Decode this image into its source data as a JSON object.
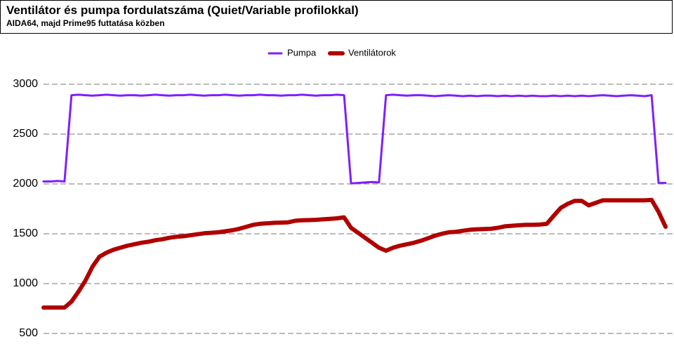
{
  "chart_data": {
    "type": "line",
    "title": "Ventilátor és pumpa fordulatszáma (Quiet/Variable profilokkal)",
    "subtitle": "AIDA64, majd Prime95 futtatása közben",
    "ylim": [
      500,
      3000
    ],
    "yticks": [
      500,
      1000,
      1500,
      2000,
      2500,
      3000
    ],
    "grid": true,
    "legend": "top",
    "series": [
      {
        "name": "Pumpa",
        "color": "#7f1fff",
        "values": [
          2025,
          2025,
          2030,
          2025,
          2890,
          2895,
          2890,
          2885,
          2890,
          2895,
          2890,
          2885,
          2890,
          2890,
          2885,
          2890,
          2895,
          2890,
          2885,
          2890,
          2890,
          2895,
          2890,
          2885,
          2890,
          2890,
          2895,
          2890,
          2885,
          2890,
          2890,
          2895,
          2890,
          2890,
          2885,
          2890,
          2890,
          2895,
          2890,
          2885,
          2890,
          2890,
          2895,
          2890,
          2005,
          2010,
          2015,
          2020,
          2015,
          2890,
          2895,
          2890,
          2885,
          2890,
          2890,
          2885,
          2880,
          2885,
          2890,
          2885,
          2880,
          2885,
          2880,
          2885,
          2885,
          2880,
          2885,
          2880,
          2885,
          2880,
          2885,
          2880,
          2880,
          2885,
          2880,
          2885,
          2880,
          2885,
          2880,
          2885,
          2890,
          2885,
          2880,
          2885,
          2890,
          2885,
          2880,
          2890,
          2010,
          2010
        ]
      },
      {
        "name": "Ventilátorok",
        "color": "#b00000",
        "values": [
          760,
          760,
          760,
          760,
          820,
          920,
          1030,
          1170,
          1270,
          1310,
          1340,
          1360,
          1380,
          1395,
          1410,
          1420,
          1435,
          1445,
          1460,
          1470,
          1475,
          1485,
          1495,
          1505,
          1510,
          1515,
          1525,
          1535,
          1550,
          1570,
          1590,
          1600,
          1605,
          1610,
          1612,
          1615,
          1630,
          1635,
          1637,
          1640,
          1645,
          1650,
          1655,
          1665,
          1560,
          1510,
          1460,
          1410,
          1360,
          1330,
          1360,
          1380,
          1395,
          1410,
          1430,
          1455,
          1480,
          1500,
          1515,
          1520,
          1530,
          1540,
          1545,
          1548,
          1550,
          1560,
          1575,
          1580,
          1585,
          1590,
          1590,
          1592,
          1600,
          1680,
          1760,
          1800,
          1830,
          1830,
          1785,
          1810,
          1835,
          1835,
          1835,
          1835,
          1835,
          1835,
          1835,
          1840,
          1720,
          1570
        ]
      }
    ]
  }
}
